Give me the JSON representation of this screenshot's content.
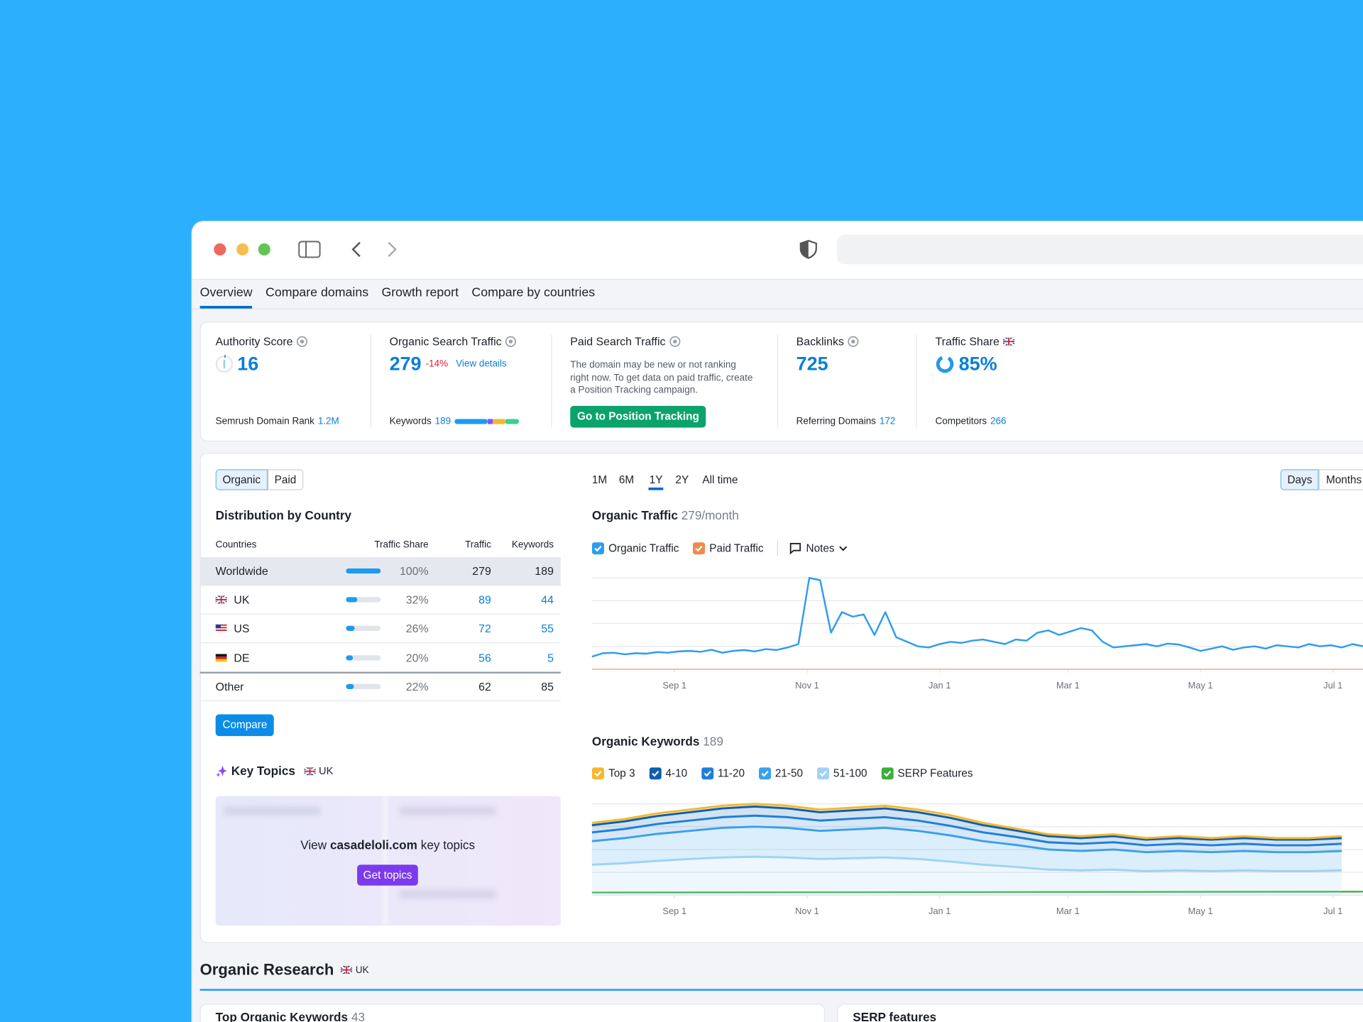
{
  "tabs": [
    "Overview",
    "Compare domains",
    "Growth report",
    "Compare by countries"
  ],
  "metrics": [
    {
      "label": "Authority Score",
      "value": "16",
      "footer_label": "Semrush Domain Rank",
      "footer_value": "1.2M"
    },
    {
      "label": "Organic Search Traffic",
      "value": "279",
      "change": "-14%",
      "link": "View details",
      "footer_label": "Keywords",
      "footer_value": "189"
    },
    {
      "label": "Paid Search Traffic",
      "text": "The domain may be new or not ranking right now. To get data on paid traffic, create a Position Tracking campaign.",
      "button": "Go to Position Tracking"
    },
    {
      "label": "Backlinks",
      "value": "725",
      "footer_label": "Referring Domains",
      "footer_value": "172"
    },
    {
      "label": "Traffic Share",
      "value": "85%",
      "footer_label": "Competitors",
      "footer_value": "266"
    }
  ],
  "toggle": [
    "Organic",
    "Paid"
  ],
  "distribution": {
    "title": "Distribution by Country",
    "columns": [
      "Countries",
      "Traffic Share",
      "Traffic",
      "Keywords"
    ],
    "rows": [
      [
        "Worldwide",
        "100%",
        "279",
        "189"
      ],
      [
        "UK",
        "32%",
        "89",
        "44"
      ],
      [
        "US",
        "26%",
        "72",
        "55"
      ],
      [
        "DE",
        "20%",
        "56",
        "5"
      ],
      [
        "Other",
        "22%",
        "62",
        "85"
      ]
    ],
    "button": "Compare"
  },
  "key_topics": {
    "title": "Key Topics",
    "region": "UK",
    "prompt_prefix": "View",
    "domain": "casadeloli.com",
    "prompt_suffix": "key topics",
    "button": "Get topics"
  },
  "periods": [
    "1M",
    "6M",
    "1Y",
    "2Y",
    "All time"
  ],
  "granularity": [
    "Days",
    "Months"
  ],
  "traffic_chart": {
    "type": "line",
    "title": "Organic Traffic",
    "subtitle": "279/month",
    "notes": "Notes",
    "xlim": [
      0,
      355
    ],
    "ylim": [
      0,
      400
    ],
    "grid": [
      100,
      200,
      300,
      400
    ],
    "xticks": [
      {
        "value": 38,
        "label": "Sep 1"
      },
      {
        "value": 99,
        "label": "Nov 1"
      },
      {
        "value": 160,
        "label": "Jan 1"
      },
      {
        "value": 219,
        "label": "Mar 1"
      },
      {
        "value": 280,
        "label": "May 1"
      },
      {
        "value": 341,
        "label": "Jul 1"
      }
    ],
    "x": [
      0,
      5,
      10,
      15,
      20,
      25,
      30,
      35,
      40,
      45,
      50,
      55,
      60,
      65,
      70,
      75,
      80,
      85,
      90,
      95,
      100,
      105,
      110,
      115,
      120,
      125,
      130,
      135,
      140,
      145,
      150,
      155,
      160,
      165,
      170,
      175,
      180,
      185,
      190,
      195,
      200,
      205,
      210,
      215,
      220,
      225,
      230,
      235,
      240,
      245,
      250,
      255,
      260,
      265,
      270,
      275,
      280,
      285,
      290,
      295,
      300,
      305,
      310,
      315,
      320,
      325,
      330,
      335,
      340,
      345,
      350,
      355
    ],
    "series": [
      {
        "name": "Organic Traffic",
        "color": "#2e9cf0",
        "values": [
          55,
          70,
          72,
          65,
          70,
          68,
          75,
          72,
          78,
          80,
          76,
          85,
          72,
          80,
          84,
          78,
          88,
          84,
          95,
          110,
          400,
          390,
          160,
          250,
          230,
          240,
          150,
          250,
          140,
          120,
          100,
          95,
          110,
          120,
          115,
          125,
          130,
          120,
          110,
          130,
          125,
          160,
          170,
          150,
          165,
          180,
          170,
          120,
          95,
          100,
          105,
          110,
          100,
          112,
          108,
          95,
          80,
          90,
          100,
          85,
          95,
          100,
          90,
          105,
          100,
          95,
          110,
          100,
          105,
          95,
          110,
          100
        ]
      },
      {
        "name": "Paid Traffic",
        "color": "#f08a4b",
        "values": [
          0,
          0,
          0,
          0,
          0,
          0,
          0,
          0,
          0,
          0,
          0,
          0,
          0,
          0,
          0,
          0,
          0,
          0,
          0,
          0,
          0,
          0,
          0,
          0,
          0,
          0,
          0,
          0,
          0,
          0,
          0,
          0,
          0,
          0,
          0,
          0,
          0,
          0,
          0,
          0,
          0,
          0,
          0,
          0,
          0,
          0,
          0,
          0,
          0,
          0,
          0,
          0,
          0,
          0,
          0,
          0,
          0,
          0,
          0,
          0,
          0,
          0,
          0,
          0,
          0,
          0,
          0,
          0,
          0,
          0,
          0,
          0
        ]
      }
    ]
  },
  "keywords_chart": {
    "type": "area",
    "title": "Organic Keywords",
    "subtitle": "189",
    "xlim": [
      0,
      355
    ],
    "ylim": [
      0,
      240
    ],
    "grid": [
      60,
      120,
      180,
      240
    ],
    "xticks": [
      {
        "value": 38,
        "label": "Sep 1"
      },
      {
        "value": 99,
        "label": "Nov 1"
      },
      {
        "value": 160,
        "label": "Jan 1"
      },
      {
        "value": 219,
        "label": "Mar 1"
      },
      {
        "value": 280,
        "label": "May 1"
      },
      {
        "value": 341,
        "label": "Jul 1"
      }
    ],
    "x": [
      0,
      15,
      30,
      45,
      60,
      75,
      90,
      105,
      120,
      135,
      150,
      165,
      180,
      195,
      210,
      225,
      240,
      255,
      270,
      285,
      300,
      315,
      330,
      345
    ],
    "series": [
      {
        "name": "Top 3",
        "color": "#f5b82e",
        "values": [
          6,
          6,
          7,
          7,
          7,
          7,
          7,
          7,
          7,
          7,
          7,
          7,
          6,
          5,
          5,
          5,
          5,
          4,
          5,
          4,
          5,
          4,
          4,
          5
        ]
      },
      {
        "name": "4-10",
        "color": "#0b5fb0",
        "values": [
          19,
          20,
          21,
          22,
          23,
          24,
          23,
          22,
          22,
          23,
          22,
          21,
          19,
          17,
          16,
          15,
          16,
          15,
          15,
          15,
          15,
          15,
          15,
          15
        ]
      },
      {
        "name": "11-20",
        "color": "#1d7fd8",
        "values": [
          23,
          24,
          26,
          27,
          28,
          29,
          28,
          27,
          28,
          28,
          27,
          25,
          23,
          21,
          19,
          19,
          19,
          18,
          19,
          18,
          19,
          18,
          18,
          19
        ]
      },
      {
        "name": "21-50",
        "color": "#3aa0ec",
        "values": [
          62,
          66,
          71,
          74,
          78,
          79,
          78,
          74,
          76,
          78,
          74,
          69,
          62,
          58,
          53,
          51,
          53,
          50,
          51,
          50,
          51,
          50,
          50,
          51
        ]
      },
      {
        "name": "51-100",
        "color": "#9fd2f5",
        "values": [
          80,
          84,
          90,
          95,
          99,
          101,
          99,
          95,
          97,
          99,
          95,
          88,
          80,
          74,
          67,
          65,
          67,
          63,
          65,
          63,
          65,
          63,
          63,
          65
        ]
      }
    ],
    "serp_features": {
      "name": "SERP Features",
      "color": "#3dae3d"
    }
  },
  "organic_research": {
    "title": "Organic Research",
    "region": "UK",
    "cards": [
      {
        "title": "Top Organic Keywords",
        "count": "43"
      },
      {
        "title": "SERP features"
      }
    ]
  }
}
